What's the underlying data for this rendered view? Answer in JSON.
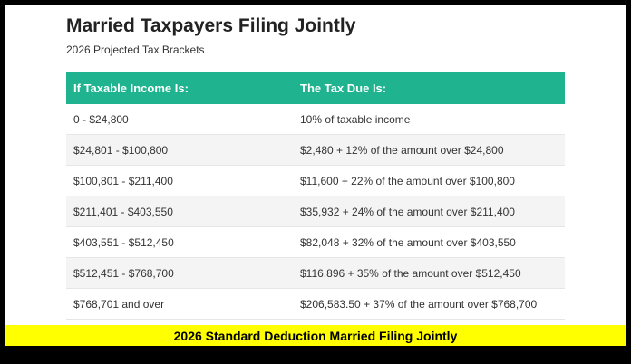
{
  "title": "Married Taxpayers Filing Jointly",
  "subtitle": "2026 Projected Tax Brackets",
  "table": {
    "headers": [
      "If Taxable Income Is:",
      "The Tax Due Is:"
    ],
    "rows": [
      [
        "0 - $24,800",
        "10% of taxable income"
      ],
      [
        "$24,801 - $100,800",
        "$2,480 + 12% of the amount over $24,800"
      ],
      [
        "$100,801 - $211,400",
        "$11,600 + 22% of the amount over $100,800"
      ],
      [
        "$211,401 - $403,550",
        "$35,932 + 24% of the amount over $211,400"
      ],
      [
        "$403,551 - $512,450",
        "$82,048 + 32% of the amount over $403,550"
      ],
      [
        "$512,451 - $768,700",
        "$116,896 + 35% of the amount over $512,450"
      ],
      [
        "$768,701 and over",
        "$206,583.50 + 37% of the amount over $768,700"
      ]
    ]
  },
  "banner": "2026 Standard Deduction Married Filing Jointly",
  "colors": {
    "header": "#1fb38f",
    "banner": "#ffff00",
    "frame": "#000000"
  }
}
